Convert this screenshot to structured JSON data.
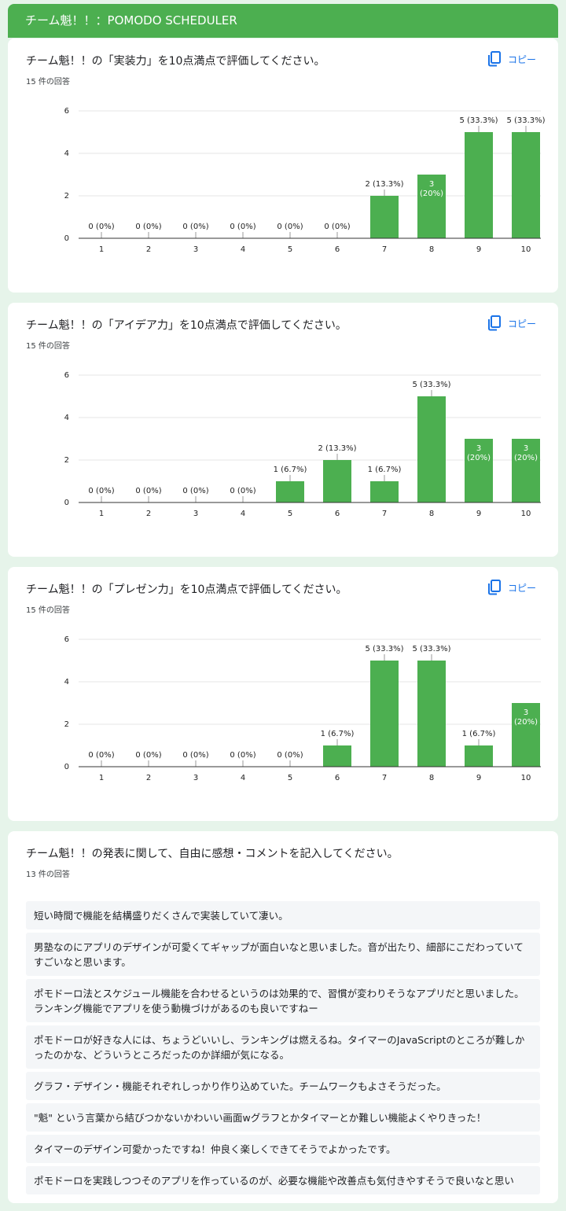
{
  "header": {
    "title": "チーム魁！！：POMODO SCHEDULER"
  },
  "copy_buttons": [
    "コピー",
    "コピー",
    "コピー"
  ],
  "chart_data": [
    {
      "type": "bar",
      "title": "チーム魁！！の「実装力」を10点満点で評価してください。",
      "subtitle": "15 件の回答",
      "categories": [
        "1",
        "2",
        "3",
        "4",
        "5",
        "6",
        "7",
        "8",
        "9",
        "10"
      ],
      "values": [
        0,
        0,
        0,
        0,
        0,
        0,
        2,
        3,
        5,
        5
      ],
      "value_labels": [
        "0 (0%)",
        "0 (0%)",
        "0 (0%)",
        "0 (0%)",
        "0 (0%)",
        "0 (0%)",
        "2 (13.3%)",
        "3 (20%)",
        "5 (33.3%)",
        "5 (33.3%)"
      ],
      "color": "#4caf50",
      "ylim": [
        0,
        6
      ],
      "yticks": [
        0,
        2,
        4,
        6
      ],
      "grid": true
    },
    {
      "type": "bar",
      "title": "チーム魁！！の「アイデア力」を10点満点で評価してください。",
      "subtitle": "15 件の回答",
      "categories": [
        "1",
        "2",
        "3",
        "4",
        "5",
        "6",
        "7",
        "8",
        "9",
        "10"
      ],
      "values": [
        0,
        0,
        0,
        0,
        1,
        2,
        1,
        5,
        3,
        3
      ],
      "value_labels": [
        "0 (0%)",
        "0 (0%)",
        "0 (0%)",
        "0 (0%)",
        "1 (6.7%)",
        "2 (13.3%)",
        "1 (6.7%)",
        "5 (33.3%)",
        "3 (20%)",
        "3 (20%)"
      ],
      "color": "#4caf50",
      "ylim": [
        0,
        6
      ],
      "yticks": [
        0,
        2,
        4,
        6
      ],
      "grid": true
    },
    {
      "type": "bar",
      "title": "チーム魁！！の「プレゼン力」を10点満点で評価してください。",
      "subtitle": "15 件の回答",
      "categories": [
        "1",
        "2",
        "3",
        "4",
        "5",
        "6",
        "7",
        "8",
        "9",
        "10"
      ],
      "values": [
        0,
        0,
        0,
        0,
        0,
        1,
        5,
        5,
        1,
        3
      ],
      "value_labels": [
        "0 (0%)",
        "0 (0%)",
        "0 (0%)",
        "0 (0%)",
        "0 (0%)",
        "1 (6.7%)",
        "5 (33.3%)",
        "5 (33.3%)",
        "1 (6.7%)",
        "3 (20%)"
      ],
      "color": "#4caf50",
      "ylim": [
        0,
        6
      ],
      "yticks": [
        0,
        2,
        4,
        6
      ],
      "grid": true
    }
  ],
  "responses_card": {
    "title": "チーム魁！！の発表に関して、自由に感想・コメントを記入してください。",
    "count": "13 件の回答",
    "items": [
      "短い時間で機能を結構盛りだくさんで実装していて凄い。",
      "男塾なのにアプリのデザインが可愛くてギャップが面白いなと思いました。音が出たり、細部にこだわっていてすごいなと思います。",
      "ポモドーロ法とスケジュール機能を合わせるというのは効果的で、習慣が変わりそうなアプリだと思いました。ランキング機能でアプリを使う動機づけがあるのも良いですねー",
      "ポモドーロが好きな人には、ちょうどいいし、ランキングは燃えるね。タイマーのJavaScriptのところが難しかったのかな、どういうところだったのか詳細が気になる。",
      "グラフ・デザイン・機能それぞれしっかり作り込めていた。チームワークもよさそうだった。",
      "\"魁\" という言葉から結びつかないかわいい画面wグラフとかタイマーとか難しい機能よくやりきった！",
      "タイマーのデザイン可愛かったですね！仲良く楽しくできてそうでよかったです。",
      "ポモドーロを実践しつつそのアプリを作っているのが、必要な機能や改善点も気付きやすそうで良いなと思い"
    ]
  }
}
